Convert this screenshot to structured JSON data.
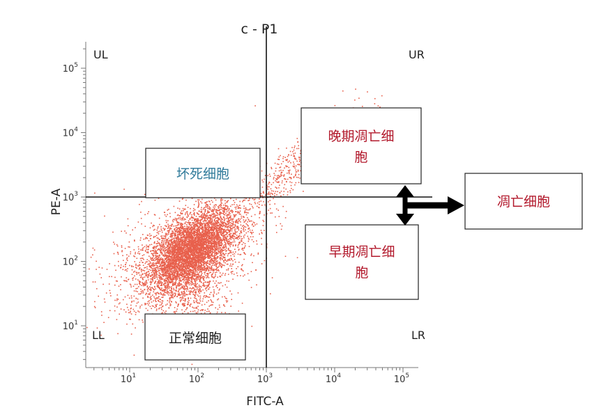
{
  "chart_data": {
    "type": "scatter",
    "title": "c - P1",
    "xlabel": "FITC-A",
    "ylabel": "PE-A",
    "x_scale": "log",
    "y_scale": "log",
    "xlim": [
      3,
      300000
    ],
    "ylim": [
      3,
      300000
    ],
    "gate": {
      "x": 1000,
      "y": 1000
    },
    "x_ticks": [
      {
        "value": 10,
        "base": "10",
        "exp": "1"
      },
      {
        "value": 100,
        "base": "10",
        "exp": "2"
      },
      {
        "value": 1000,
        "base": "10",
        "exp": "3"
      },
      {
        "value": 10000,
        "base": "10",
        "exp": "4"
      },
      {
        "value": 100000,
        "base": "10",
        "exp": "5"
      }
    ],
    "y_ticks": [
      {
        "value": 10,
        "base": "10",
        "exp": "1"
      },
      {
        "value": 100,
        "base": "10",
        "exp": "2"
      },
      {
        "value": 1000,
        "base": "10",
        "exp": "3"
      },
      {
        "value": 10000,
        "base": "10",
        "exp": "4"
      },
      {
        "value": 100000,
        "base": "10",
        "exp": "5"
      }
    ],
    "quadrants": {
      "ul": "UL",
      "ur": "UR",
      "ll": "LL",
      "lr": "LR"
    },
    "point_color": "#e8604c",
    "populations": [
      {
        "x_center": 80,
        "y_center": 150,
        "x_spread_decades": 0.32,
        "y_spread_decades": 0.32,
        "correlation": 0.55,
        "count": 5200
      },
      {
        "x_center": 60,
        "y_center": 120,
        "x_spread_decades": 0.55,
        "y_spread_decades": 0.5,
        "correlation": 0.4,
        "count": 1500
      },
      {
        "x_center": 2500,
        "y_center": 3000,
        "x_spread_decades": 0.45,
        "y_spread_decades": 0.45,
        "correlation": 0.9,
        "count": 550
      },
      {
        "x_center": 90,
        "y_center": 20,
        "x_spread_decades": 0.25,
        "y_spread_decades": 0.3,
        "correlation": 0.0,
        "count": 300
      }
    ]
  },
  "annotations": {
    "necrotic": "坏死细胞",
    "late_apoptotic": "晚期凋亡细胞",
    "early_apoptotic": "早期凋亡细胞",
    "normal": "正常细胞",
    "apoptotic": "凋亡细胞"
  },
  "colors": {
    "necrotic_text": "#2f7a9a",
    "apoptotic_text": "#b2182b",
    "normal_text": "#222222"
  }
}
